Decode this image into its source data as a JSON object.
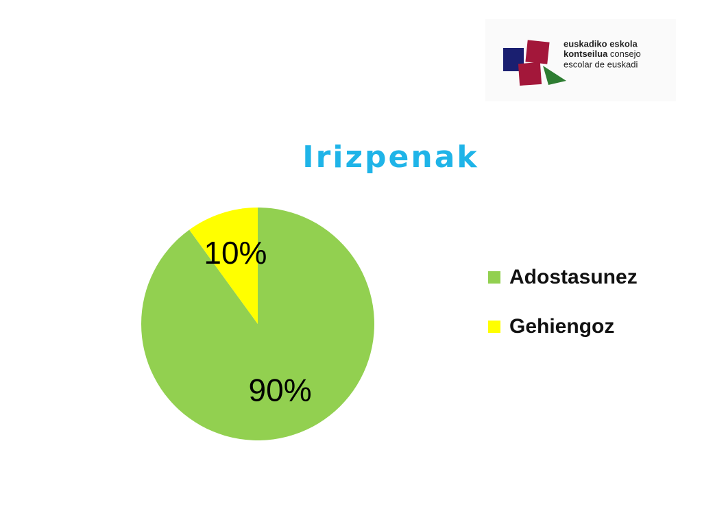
{
  "chart_data": {
    "type": "pie",
    "title": "Irizpenak",
    "categories": [
      "Adostasunez",
      "Gehiengoz"
    ],
    "values": [
      90,
      10
    ],
    "value_labels": [
      "90%",
      "10%"
    ],
    "colors": [
      "#92d050",
      "#ffff00"
    ],
    "legend": "right"
  },
  "logo": {
    "lines": [
      "euskadiko eskola",
      "kontseilua",
      "consejo",
      "escolar de euskadi"
    ]
  }
}
